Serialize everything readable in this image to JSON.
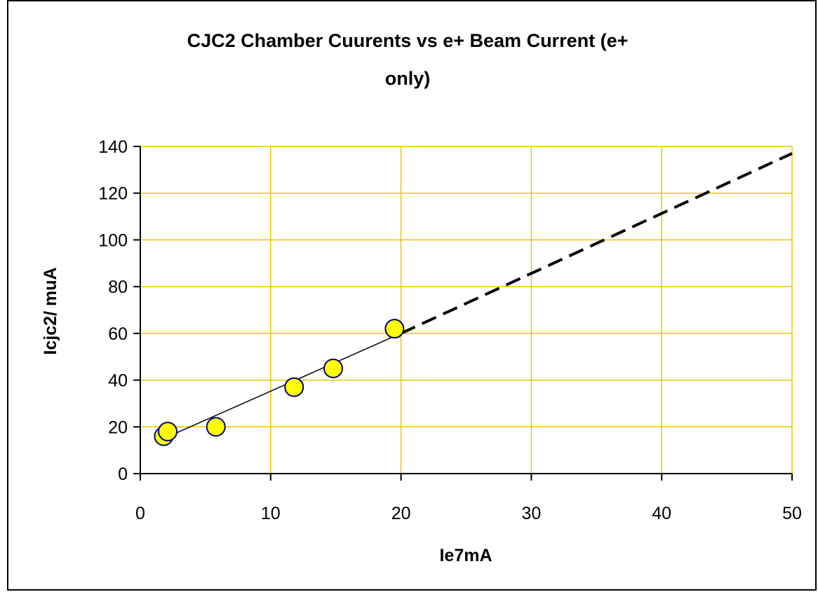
{
  "chart_data": {
    "type": "scatter",
    "title_lines": [
      "CJC2 Chamber Cuurents vs e+ Beam Current (e+",
      "only)"
    ],
    "xlabel": "Ie7mA",
    "ylabel": "Icjc2/ muA",
    "xlim": [
      0,
      50
    ],
    "ylim": [
      0,
      140
    ],
    "xticks": [
      "0",
      "10",
      "20",
      "30",
      "40",
      "50"
    ],
    "yticks": [
      "0",
      "20",
      "40",
      "60",
      "80",
      "100",
      "120",
      "140"
    ],
    "grid": true,
    "legend": "none",
    "series": [
      {
        "kind": "points",
        "x": [
          1.8,
          2.1,
          5.8,
          11.8,
          14.8,
          19.5
        ],
        "y": [
          16,
          18,
          20,
          37,
          45,
          62
        ]
      },
      {
        "kind": "fit-line-solid",
        "x": [
          1.8,
          20
        ],
        "y": [
          15,
          60
        ]
      },
      {
        "kind": "fit-line-dashed",
        "x": [
          20,
          50
        ],
        "y": [
          60,
          137
        ]
      }
    ]
  },
  "colors": {
    "marker_fill": "#ffff00",
    "marker_stroke": "#000080",
    "grid": "#e6c700",
    "axis": "#000000",
    "fit_line": "#000000"
  }
}
